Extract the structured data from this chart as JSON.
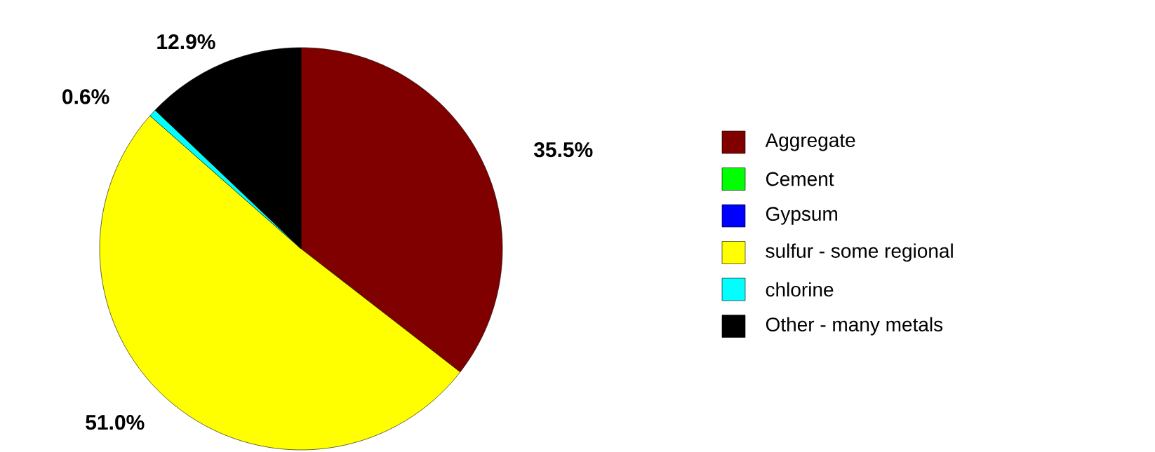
{
  "chart_data": {
    "type": "pie",
    "categories": [
      "Aggregate",
      "Cement",
      "Gypsum",
      "sulfur - some regional",
      "chlorine",
      "Other - many metals"
    ],
    "values": [
      35.5,
      0,
      0,
      51.0,
      0.6,
      12.9
    ],
    "value_labels": [
      "35.5%",
      null,
      null,
      "51.0%",
      "0.6%",
      "12.9%"
    ],
    "colors": [
      "#800000",
      "#00ff00",
      "#0000ff",
      "#ffff00",
      "#00ffff",
      "#000000"
    ],
    "legend": "right"
  }
}
